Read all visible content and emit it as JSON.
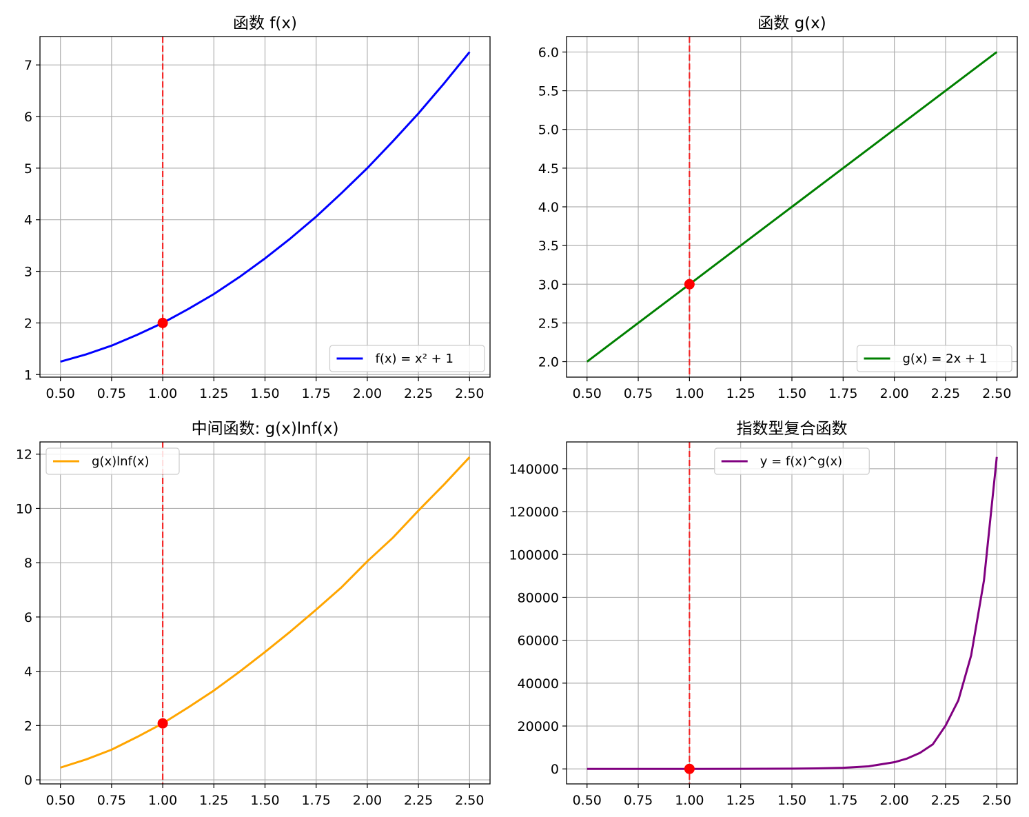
{
  "colors": {
    "background": "#ffffff",
    "grid": "#b0b0b0",
    "marker_line": "#ff0000",
    "marker_point": "#ff0000"
  },
  "chart_data": [
    {
      "type": "line",
      "title": "函数 f(x)",
      "xlabel": "",
      "ylabel": "",
      "xlim": [
        0.4,
        2.6
      ],
      "ylim": [
        0.95,
        7.55
      ],
      "xticks": [
        0.5,
        0.75,
        1.0,
        1.25,
        1.5,
        1.75,
        2.0,
        2.25,
        2.5
      ],
      "xtick_labels": [
        "0.50",
        "0.75",
        "1.00",
        "1.25",
        "1.50",
        "1.75",
        "2.00",
        "2.25",
        "2.50"
      ],
      "yticks": [
        1,
        2,
        3,
        4,
        5,
        6,
        7
      ],
      "ytick_labels": [
        "1",
        "2",
        "3",
        "4",
        "5",
        "6",
        "7"
      ],
      "grid": true,
      "legend_position": "lower-right",
      "series": [
        {
          "name": "f(x) = x² + 1",
          "color": "#0000ff",
          "x": [
            0.5,
            0.625,
            0.75,
            0.875,
            1.0,
            1.125,
            1.25,
            1.375,
            1.5,
            1.625,
            1.75,
            1.875,
            2.0,
            2.125,
            2.25,
            2.375,
            2.5
          ],
          "y": [
            1.25,
            1.39,
            1.56,
            1.77,
            2.0,
            2.27,
            2.56,
            2.89,
            3.25,
            3.64,
            4.06,
            4.52,
            5.0,
            5.52,
            6.06,
            6.64,
            7.25
          ]
        }
      ],
      "vline_x": 1.0,
      "point": [
        1.0,
        2.0
      ]
    },
    {
      "type": "line",
      "title": "函数 g(x)",
      "xlabel": "",
      "ylabel": "",
      "xlim": [
        0.4,
        2.6
      ],
      "ylim": [
        1.8,
        6.2
      ],
      "xticks": [
        0.5,
        0.75,
        1.0,
        1.25,
        1.5,
        1.75,
        2.0,
        2.25,
        2.5
      ],
      "xtick_labels": [
        "0.50",
        "0.75",
        "1.00",
        "1.25",
        "1.50",
        "1.75",
        "2.00",
        "2.25",
        "2.50"
      ],
      "yticks": [
        2.0,
        2.5,
        3.0,
        3.5,
        4.0,
        4.5,
        5.0,
        5.5,
        6.0
      ],
      "ytick_labels": [
        "2.0",
        "2.5",
        "3.0",
        "3.5",
        "4.0",
        "4.5",
        "5.0",
        "5.5",
        "6.0"
      ],
      "grid": true,
      "legend_position": "lower-right",
      "series": [
        {
          "name": "g(x) = 2x + 1",
          "color": "#008000",
          "x": [
            0.5,
            1.0,
            1.5,
            2.0,
            2.5
          ],
          "y": [
            2.0,
            3.0,
            4.0,
            5.0,
            6.0
          ]
        }
      ],
      "vline_x": 1.0,
      "point": [
        1.0,
        3.0
      ]
    },
    {
      "type": "line",
      "title": "中间函数: g(x)lnf(x)",
      "xlabel": "",
      "ylabel": "",
      "xlim": [
        0.4,
        2.6
      ],
      "ylim": [
        -0.15,
        12.45
      ],
      "xticks": [
        0.5,
        0.75,
        1.0,
        1.25,
        1.5,
        1.75,
        2.0,
        2.25,
        2.5
      ],
      "xtick_labels": [
        "0.50",
        "0.75",
        "1.00",
        "1.25",
        "1.50",
        "1.75",
        "2.00",
        "2.25",
        "2.50"
      ],
      "yticks": [
        0,
        2,
        4,
        6,
        8,
        10,
        12
      ],
      "ytick_labels": [
        "0",
        "2",
        "4",
        "6",
        "8",
        "10",
        "12"
      ],
      "grid": true,
      "legend_position": "upper-left",
      "series": [
        {
          "name": "g(x)lnf(x)",
          "color": "#ffa500",
          "x": [
            0.5,
            0.625,
            0.75,
            0.875,
            1.0,
            1.125,
            1.25,
            1.375,
            1.5,
            1.625,
            1.75,
            1.875,
            2.0,
            2.125,
            2.25,
            2.375,
            2.5
          ],
          "y": [
            0.45,
            0.75,
            1.11,
            1.58,
            2.08,
            2.67,
            3.29,
            3.98,
            4.71,
            5.47,
            6.27,
            7.1,
            8.05,
            8.92,
            9.92,
            10.88,
            11.89
          ]
        }
      ],
      "vline_x": 1.0,
      "point": [
        1.0,
        2.08
      ]
    },
    {
      "type": "line",
      "title": "指数型复合函数",
      "xlabel": "",
      "ylabel": "",
      "xlim": [
        0.4,
        2.6
      ],
      "ylim": [
        -7000,
        152500
      ],
      "xticks": [
        0.5,
        0.75,
        1.0,
        1.25,
        1.5,
        1.75,
        2.0,
        2.25,
        2.5
      ],
      "xtick_labels": [
        "0.50",
        "0.75",
        "1.00",
        "1.25",
        "1.50",
        "1.75",
        "2.00",
        "2.25",
        "2.50"
      ],
      "yticks": [
        0,
        20000,
        40000,
        60000,
        80000,
        100000,
        120000,
        140000
      ],
      "ytick_labels": [
        "0",
        "20000",
        "40000",
        "60000",
        "80000",
        "100000",
        "120000",
        "140000"
      ],
      "grid": true,
      "legend_position": "upper-center",
      "series": [
        {
          "name": "y = f(x)^g(x)",
          "color": "#800080",
          "x": [
            0.5,
            0.75,
            1.0,
            1.25,
            1.5,
            1.625,
            1.75,
            1.875,
            2.0,
            2.0625,
            2.125,
            2.1875,
            2.25,
            2.3125,
            2.375,
            2.4375,
            2.5
          ],
          "y": [
            1.6,
            3,
            8,
            27,
            111,
            237,
            529,
            1210,
            3125,
            4857,
            7480,
            11440,
            20200,
            32000,
            53000,
            88000,
            145500
          ]
        }
      ],
      "vline_x": 1.0,
      "point": [
        1.0,
        8
      ]
    }
  ]
}
